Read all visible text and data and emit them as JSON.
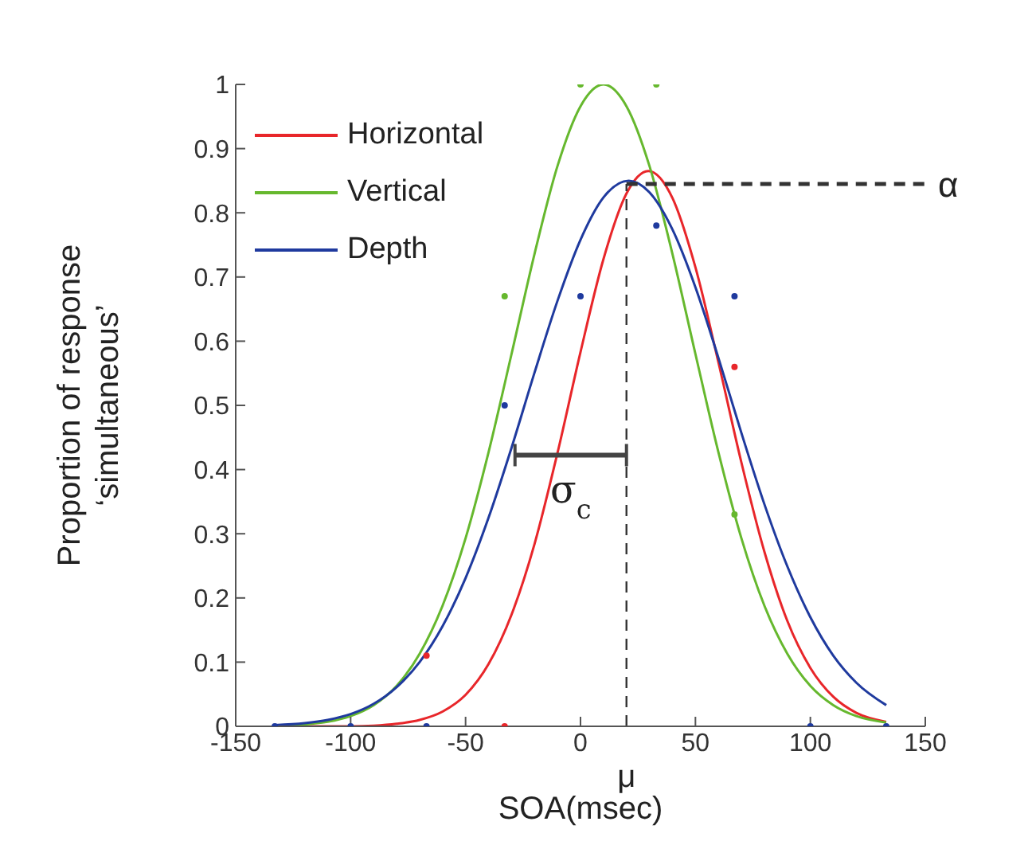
{
  "chart_data": {
    "type": "line",
    "xlabel": "SOA(msec)",
    "ylabel": "Proportion of response\n‘simultaneous’",
    "xlim": [
      -150,
      150
    ],
    "ylim": [
      0,
      1
    ],
    "xticks": [
      -150,
      -100,
      -50,
      0,
      50,
      100,
      150
    ],
    "yticks": [
      0,
      0.1,
      0.2,
      0.3,
      0.4,
      0.5,
      0.6,
      0.7,
      0.8,
      0.9,
      1
    ],
    "legend": "top left",
    "marker": "none",
    "line_style": "solid",
    "series": [
      {
        "name": "Horizontal",
        "color": "#e8262a",
        "x": [
          -133,
          -120,
          -110,
          -100,
          -90,
          -80,
          -70,
          -60,
          -50,
          -40,
          -30,
          -20,
          -10,
          0,
          10,
          20,
          29.5,
          40,
          50,
          60,
          70,
          80,
          90,
          100,
          110,
          120,
          133
        ],
        "values": [
          0,
          0,
          0,
          0,
          0.001,
          0.004,
          0.01,
          0.023,
          0.049,
          0.097,
          0.174,
          0.284,
          0.426,
          0.583,
          0.728,
          0.83,
          0.865,
          0.823,
          0.715,
          0.567,
          0.411,
          0.272,
          0.164,
          0.091,
          0.046,
          0.021,
          0.007
        ]
      },
      {
        "name": "Vertical",
        "color": "#66b82e",
        "x": [
          -133,
          -120,
          -110,
          -100,
          -90,
          -80,
          -70,
          -60,
          -50,
          -40,
          -30,
          -20,
          -10,
          0,
          10,
          20,
          30,
          40,
          50,
          60,
          70,
          80,
          90,
          100,
          110,
          120,
          133
        ],
        "values": [
          0.001,
          0.003,
          0.007,
          0.016,
          0.033,
          0.063,
          0.113,
          0.188,
          0.293,
          0.427,
          0.58,
          0.736,
          0.873,
          0.966,
          1,
          0.966,
          0.873,
          0.736,
          0.58,
          0.427,
          0.293,
          0.188,
          0.113,
          0.063,
          0.033,
          0.016,
          0.006
        ]
      },
      {
        "name": "Depth",
        "color": "#1f3a9e",
        "x": [
          -133,
          -120,
          -110,
          -100,
          -90,
          -80,
          -70,
          -60,
          -50,
          -40,
          -30,
          -20,
          -10,
          0,
          10,
          21,
          30,
          40,
          50,
          60,
          70,
          80,
          90,
          100,
          110,
          120,
          133
        ],
        "values": [
          0.002,
          0.005,
          0.01,
          0.019,
          0.035,
          0.061,
          0.1,
          0.156,
          0.231,
          0.325,
          0.434,
          0.551,
          0.663,
          0.758,
          0.824,
          0.85,
          0.832,
          0.774,
          0.684,
          0.574,
          0.457,
          0.346,
          0.249,
          0.17,
          0.11,
          0.068,
          0.033
        ]
      },
      {
        "type": "scatter",
        "marker": "circle",
        "color": "#e8262a",
        "x": [
          -67,
          -33,
          67
        ],
        "values": [
          0.11,
          0,
          0.56
        ]
      },
      {
        "type": "scatter",
        "marker": "circle",
        "color": "#66b82e",
        "x": [
          -33,
          0,
          33,
          67
        ],
        "values": [
          0.67,
          1,
          1,
          0.33
        ]
      },
      {
        "type": "scatter",
        "marker": "circle",
        "color": "#1f3a9e",
        "x": [
          -133,
          -100,
          -67,
          -33,
          0,
          33,
          67,
          100,
          133
        ],
        "values": [
          0,
          0,
          0,
          0.5,
          0.67,
          0.78,
          0.67,
          0,
          0
        ]
      }
    ],
    "ref_lines": [
      {
        "axis": "x",
        "value": 20,
        "label": "μ",
        "line_style": "dashed",
        "color": "#333333"
      },
      {
        "axis": "y",
        "value": 0.845,
        "label": "α",
        "line_style": "dashed",
        "color": "#333333"
      }
    ],
    "annotations": [
      "σ$_{c}$"
    ]
  }
}
